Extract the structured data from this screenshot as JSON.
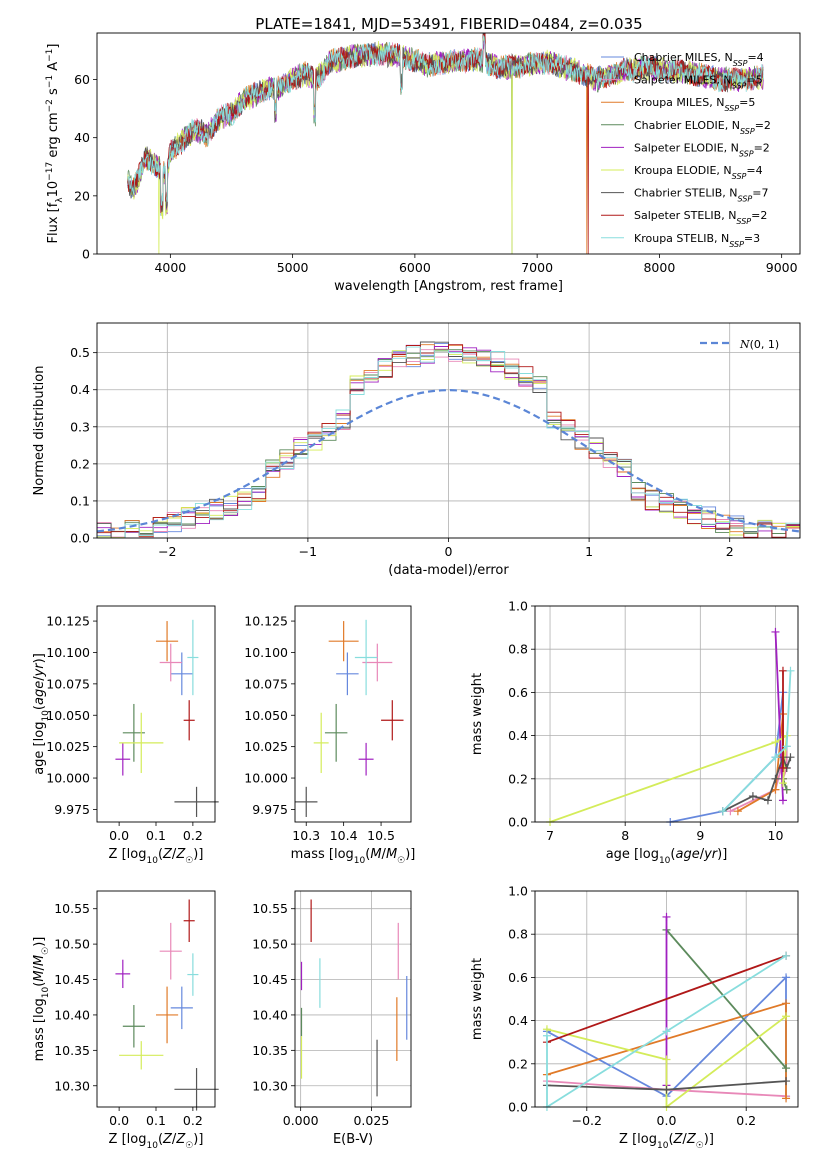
{
  "title": "PLATE=1841, MJD=53491, FIBERID=0484, z=0.035",
  "colors": {
    "Chabrier MILES": "#6688dd",
    "Salpeter MILES": "#e888b8",
    "Kroupa MILES": "#e07a28",
    "Chabrier ELODIE": "#5c8a5c",
    "Salpeter ELODIE": "#a020c0",
    "Kroupa ELODIE": "#d4ec5a",
    "Chabrier STELIB": "#555555",
    "Salpeter STELIB": "#b01818",
    "Kroupa STELIB": "#88dddd"
  },
  "chart_data": [
    {
      "type": "line",
      "title": "PLATE=1841, MJD=53491, FIBERID=0484, z=0.035",
      "xlabel": "wavelength [Angstrom, rest frame]",
      "ylabel": "Flux [f_λ 10^-17 erg cm^-2 s^-1 A^-1]",
      "xlim": [
        3400,
        9150
      ],
      "ylim": [
        0,
        76
      ],
      "xticks": [
        4000,
        5000,
        6000,
        7000,
        8000,
        9000
      ],
      "yticks": [
        0,
        20,
        40,
        60
      ],
      "legend_position": "upper right",
      "x_range_data": [
        3650,
        8850
      ],
      "spectrum_anchors": {
        "x": [
          3650,
          3700,
          3800,
          3900,
          3970,
          4000,
          4100,
          4200,
          4300,
          4400,
          4500,
          4600,
          4700,
          4800,
          4900,
          5000,
          5100,
          5200,
          5300,
          5500,
          5700,
          5900,
          6100,
          6300,
          6500,
          6700,
          6900,
          7100,
          7300,
          7500,
          7700,
          7900,
          8100,
          8300,
          8500,
          8700,
          8850
        ],
        "y": [
          25,
          22,
          33,
          30,
          27,
          35,
          39,
          43,
          41,
          47,
          48,
          53,
          55,
          57,
          57,
          60,
          62,
          60,
          66,
          68,
          69,
          68,
          65,
          66,
          67,
          64,
          65,
          66,
          63,
          60,
          63,
          64,
          63,
          62,
          60,
          60,
          61
        ]
      },
      "series": [
        {
          "name": "Chabrier MILES, N_SSP=4"
        },
        {
          "name": "Salpeter MILES, N_SSP=5"
        },
        {
          "name": "Kroupa MILES, N_SSP=5"
        },
        {
          "name": "Chabrier ELODIE, N_SSP=2"
        },
        {
          "name": "Salpeter ELODIE, N_SSP=2"
        },
        {
          "name": "Kroupa ELODIE, N_SSP=4"
        },
        {
          "name": "Chabrier STELIB, N_SSP=7"
        },
        {
          "name": "Salpeter STELIB, N_SSP=2"
        },
        {
          "name": "Kroupa STELIB, N_SSP=3"
        }
      ]
    },
    {
      "type": "histogram",
      "xlabel": "(data-model)/error",
      "ylabel": "Normed distribution",
      "xlim": [
        -2.5,
        2.5
      ],
      "ylim": [
        0,
        0.58
      ],
      "xticks": [
        -2,
        -1,
        0,
        1,
        2
      ],
      "yticks": [
        0.0,
        0.1,
        0.2,
        0.3,
        0.4,
        0.5
      ],
      "grid": true,
      "legend_position": "upper right",
      "reference_curve": {
        "name": "N(0,1)",
        "mean": 0,
        "std": 1
      }
    },
    {
      "type": "errorbar",
      "xlabel": "Z [log10(Z/Z☉)]",
      "ylabel": "age  [log10(age/yr)]",
      "xlim": [
        -0.06,
        0.26
      ],
      "ylim": [
        9.965,
        10.137
      ],
      "xticks": [
        0.0,
        0.1,
        0.2
      ],
      "yticks": [
        9.975,
        10.0,
        10.025,
        10.05,
        10.075,
        10.1,
        10.125
      ],
      "points": [
        {
          "series": "Chabrier MILES",
          "x": 0.17,
          "y": 10.083,
          "xerr": 0.03,
          "yerr": 0.017
        },
        {
          "series": "Salpeter MILES",
          "x": 0.14,
          "y": 10.092,
          "xerr": 0.03,
          "yerr": 0.015
        },
        {
          "series": "Kroupa MILES",
          "x": 0.13,
          "y": 10.109,
          "xerr": 0.03,
          "yerr": 0.016
        },
        {
          "series": "Chabrier ELODIE",
          "x": 0.04,
          "y": 10.036,
          "xerr": 0.03,
          "yerr": 0.023
        },
        {
          "series": "Salpeter ELODIE",
          "x": 0.01,
          "y": 10.015,
          "xerr": 0.02,
          "yerr": 0.013
        },
        {
          "series": "Kroupa ELODIE",
          "x": 0.06,
          "y": 10.028,
          "xerr": 0.06,
          "yerr": 0.024
        },
        {
          "series": "Chabrier STELIB",
          "x": 0.21,
          "y": 9.981,
          "xerr": 0.06,
          "yerr": 0.012
        },
        {
          "series": "Salpeter STELIB",
          "x": 0.19,
          "y": 10.046,
          "xerr": 0.015,
          "yerr": 0.016
        },
        {
          "series": "Kroupa STELIB",
          "x": 0.2,
          "y": 10.096,
          "xerr": 0.015,
          "yerr": 0.03
        }
      ]
    },
    {
      "type": "errorbar",
      "xlabel": "mass [log10(M/M☉)]",
      "ylabel": "",
      "xlim": [
        10.27,
        10.58
      ],
      "ylim": [
        9.965,
        10.137
      ],
      "xticks": [
        10.3,
        10.4,
        10.5
      ],
      "yticks": [
        9.975,
        10.0,
        10.025,
        10.05,
        10.075,
        10.1,
        10.125
      ],
      "points": [
        {
          "series": "Chabrier MILES",
          "x": 10.41,
          "y": 10.083,
          "xerr": 0.03,
          "yerr": 0.017
        },
        {
          "series": "Salpeter MILES",
          "x": 10.49,
          "y": 10.092,
          "xerr": 0.04,
          "yerr": 0.015
        },
        {
          "series": "Kroupa MILES",
          "x": 10.4,
          "y": 10.109,
          "xerr": 0.04,
          "yerr": 0.016
        },
        {
          "series": "Chabrier ELODIE",
          "x": 10.38,
          "y": 10.036,
          "xerr": 0.03,
          "yerr": 0.023
        },
        {
          "series": "Salpeter ELODIE",
          "x": 10.46,
          "y": 10.015,
          "xerr": 0.02,
          "yerr": 0.013
        },
        {
          "series": "Kroupa ELODIE",
          "x": 10.34,
          "y": 10.028,
          "xerr": 0.02,
          "yerr": 0.024
        },
        {
          "series": "Chabrier STELIB",
          "x": 10.3,
          "y": 9.981,
          "xerr": 0.03,
          "yerr": 0.012
        },
        {
          "series": "Salpeter STELIB",
          "x": 10.53,
          "y": 10.046,
          "xerr": 0.03,
          "yerr": 0.016
        },
        {
          "series": "Kroupa STELIB",
          "x": 10.46,
          "y": 10.096,
          "xerr": 0.03,
          "yerr": 0.03
        }
      ]
    },
    {
      "type": "line",
      "xlabel": "age  [log10(age/yr)]",
      "ylabel": "mass weight",
      "xlim": [
        6.8,
        10.3
      ],
      "ylim": [
        0,
        1.0
      ],
      "xticks": [
        7,
        8,
        9,
        10
      ],
      "yticks": [
        0.0,
        0.2,
        0.4,
        0.6,
        0.8,
        1.0
      ],
      "grid": true,
      "series": [
        {
          "name": "Chabrier MILES",
          "x": [
            8.6,
            9.3,
            10.0,
            10.1
          ],
          "y": [
            0.0,
            0.05,
            0.3,
            0.6
          ]
        },
        {
          "name": "Salpeter MILES",
          "x": [
            9.4,
            10.0,
            10.15,
            10.15,
            10.1
          ],
          "y": [
            0.05,
            0.15,
            0.35,
            0.25,
            0.2
          ]
        },
        {
          "name": "Kroupa MILES",
          "x": [
            9.5,
            10.0,
            10.1,
            10.1,
            10.15
          ],
          "y": [
            0.05,
            0.15,
            0.5,
            0.2,
            0.15
          ]
        },
        {
          "name": "Chabrier ELODIE",
          "x": [
            10.1,
            10.15
          ],
          "y": [
            0.2,
            0.15
          ]
        },
        {
          "name": "Salpeter ELODIE",
          "x": [
            10.0,
            10.1
          ],
          "y": [
            0.88,
            0.1
          ]
        },
        {
          "name": "Kroupa ELODIE",
          "x": [
            7.0,
            10.0,
            10.15,
            10.1
          ],
          "y": [
            0.0,
            0.37,
            0.4,
            0.18
          ]
        },
        {
          "name": "Chabrier STELIB",
          "x": [
            9.3,
            9.7,
            9.9,
            10.0,
            10.1,
            10.15,
            10.2
          ],
          "y": [
            0.05,
            0.12,
            0.1,
            0.2,
            0.3,
            0.25,
            0.3
          ]
        },
        {
          "name": "Salpeter STELIB",
          "x": [
            10.1,
            10.1
          ],
          "y": [
            0.7,
            0.25
          ]
        },
        {
          "name": "Kroupa STELIB",
          "x": [
            9.3,
            10.0,
            10.15,
            10.2
          ],
          "y": [
            0.05,
            0.3,
            0.35,
            0.7
          ]
        }
      ]
    },
    {
      "type": "errorbar",
      "xlabel": "Z [log10(Z/Z☉)]",
      "ylabel": "mass [log10(M/M☉)]",
      "xlim": [
        -0.06,
        0.26
      ],
      "ylim": [
        10.27,
        10.575
      ],
      "xticks": [
        0.0,
        0.1,
        0.2
      ],
      "yticks": [
        10.3,
        10.35,
        10.4,
        10.45,
        10.5,
        10.55
      ],
      "points": [
        {
          "series": "Chabrier MILES",
          "x": 0.17,
          "y": 10.41,
          "xerr": 0.03,
          "yerr": 0.03
        },
        {
          "series": "Salpeter MILES",
          "x": 0.14,
          "y": 10.49,
          "xerr": 0.03,
          "yerr": 0.04
        },
        {
          "series": "Kroupa MILES",
          "x": 0.13,
          "y": 10.4,
          "xerr": 0.03,
          "yerr": 0.04
        },
        {
          "series": "Chabrier ELODIE",
          "x": 0.04,
          "y": 10.384,
          "xerr": 0.03,
          "yerr": 0.03
        },
        {
          "series": "Salpeter ELODIE",
          "x": 0.01,
          "y": 10.458,
          "xerr": 0.02,
          "yerr": 0.02
        },
        {
          "series": "Kroupa ELODIE",
          "x": 0.06,
          "y": 10.343,
          "xerr": 0.06,
          "yerr": 0.02
        },
        {
          "series": "Chabrier STELIB",
          "x": 0.21,
          "y": 10.295,
          "xerr": 0.06,
          "yerr": 0.03
        },
        {
          "series": "Salpeter STELIB",
          "x": 0.19,
          "y": 10.533,
          "xerr": 0.015,
          "yerr": 0.03
        },
        {
          "series": "Kroupa STELIB",
          "x": 0.2,
          "y": 10.457,
          "xerr": 0.015,
          "yerr": 0.03
        }
      ]
    },
    {
      "type": "errorbar",
      "xlabel": "E(B-V)",
      "ylabel": "",
      "xlim": [
        -0.002,
        0.039
      ],
      "ylim": [
        10.27,
        10.575
      ],
      "xticks": [
        0.0,
        0.025
      ],
      "yticks": [
        10.3,
        10.35,
        10.4,
        10.45,
        10.5,
        10.55
      ],
      "points": [
        {
          "series": "Chabrier MILES",
          "x": 0.0375,
          "y": 10.41,
          "xerr": 0,
          "yerr": 0.045
        },
        {
          "series": "Salpeter MILES",
          "x": 0.0345,
          "y": 10.49,
          "xerr": 0,
          "yerr": 0.04
        },
        {
          "series": "Kroupa MILES",
          "x": 0.034,
          "y": 10.38,
          "xerr": 0,
          "yerr": 0.045
        },
        {
          "series": "Chabrier ELODIE",
          "x": 0.0003,
          "y": 10.39,
          "xerr": 0,
          "yerr": 0.02
        },
        {
          "series": "Salpeter ELODIE",
          "x": 0.0003,
          "y": 10.455,
          "xerr": 0,
          "yerr": 0.02
        },
        {
          "series": "Kroupa ELODIE",
          "x": 0.0003,
          "y": 10.34,
          "xerr": 0,
          "yerr": 0.03
        },
        {
          "series": "Chabrier STELIB",
          "x": 0.027,
          "y": 10.325,
          "xerr": 0,
          "yerr": 0.04
        },
        {
          "series": "Salpeter STELIB",
          "x": 0.0037,
          "y": 10.533,
          "xerr": 0,
          "yerr": 0.03
        },
        {
          "series": "Kroupa STELIB",
          "x": 0.0068,
          "y": 10.445,
          "xerr": 0,
          "yerr": 0.035
        }
      ]
    },
    {
      "type": "line",
      "xlabel": "Z [log10(Z/Z☉)]",
      "ylabel": "mass weight",
      "xlim": [
        -0.33,
        0.33
      ],
      "ylim": [
        0,
        1.0
      ],
      "xticks": [
        -0.2,
        0.0,
        0.2
      ],
      "yticks": [
        0.0,
        0.2,
        0.4,
        0.6,
        0.8,
        1.0
      ],
      "grid": true,
      "series": [
        {
          "name": "Chabrier MILES",
          "x": [
            -0.3,
            0.0,
            0.3,
            0.3
          ],
          "y": [
            0.35,
            0.05,
            0.6,
            0.05
          ]
        },
        {
          "name": "Salpeter MILES",
          "x": [
            -0.3,
            0.0,
            0.3
          ],
          "y": [
            0.12,
            0.08,
            0.05
          ]
        },
        {
          "name": "Kroupa MILES",
          "x": [
            -0.3,
            0.3,
            0.3
          ],
          "y": [
            0.15,
            0.48,
            0.04
          ]
        },
        {
          "name": "Chabrier ELODIE",
          "x": [
            0.0,
            0.3
          ],
          "y": [
            0.82,
            0.18
          ]
        },
        {
          "name": "Salpeter ELODIE",
          "x": [
            0.0,
            0.0
          ],
          "y": [
            0.88,
            0.1
          ]
        },
        {
          "name": "Kroupa ELODIE",
          "x": [
            -0.3,
            0.0,
            0.0,
            0.3
          ],
          "y": [
            0.36,
            0.22,
            0.0,
            0.42
          ]
        },
        {
          "name": "Chabrier STELIB",
          "x": [
            -0.3,
            0.0,
            0.3
          ],
          "y": [
            0.1,
            0.08,
            0.12
          ]
        },
        {
          "name": "Salpeter STELIB",
          "x": [
            -0.3,
            0.3
          ],
          "y": [
            0.3,
            0.7
          ]
        },
        {
          "name": "Kroupa STELIB",
          "x": [
            -0.3,
            -0.3,
            0.0,
            0.3
          ],
          "y": [
            0.33,
            0.0,
            0.35,
            0.7
          ]
        }
      ]
    }
  ]
}
